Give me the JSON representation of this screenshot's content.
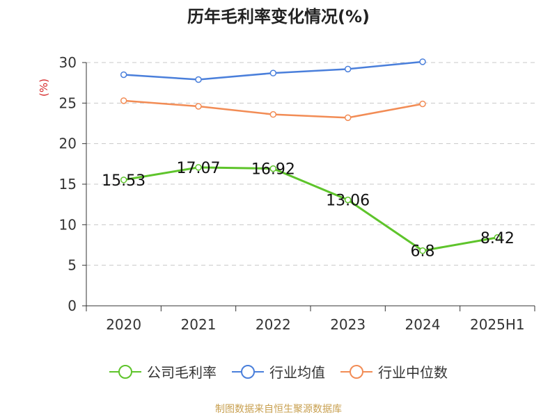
{
  "chart_data": {
    "type": "line",
    "title": "历年毛利率变化情况(%)",
    "ylabel": "(%)",
    "categories": [
      "2020",
      "2021",
      "2022",
      "2023",
      "2024",
      "2025H1"
    ],
    "ylim": [
      0,
      30
    ],
    "yticks": [
      0,
      5,
      10,
      15,
      20,
      25,
      30
    ],
    "grid": true,
    "legend_position": "bottom",
    "series": [
      {
        "name": "公司毛利率",
        "color": "#5ec42b",
        "values": [
          15.53,
          17.07,
          16.92,
          13.06,
          6.8,
          8.42
        ],
        "labels": [
          "15.53",
          "17.07",
          "16.92",
          "13.06",
          "6.8",
          "8.42"
        ]
      },
      {
        "name": "行业均值",
        "color": "#4a7fdb",
        "values": [
          28.5,
          27.9,
          28.7,
          29.2,
          30.1,
          null
        ]
      },
      {
        "name": "行业中位数",
        "color": "#f28c55",
        "values": [
          25.3,
          24.6,
          23.6,
          23.2,
          24.9,
          null
        ]
      }
    ]
  },
  "source": "制图数据来自恒生聚源数据库"
}
